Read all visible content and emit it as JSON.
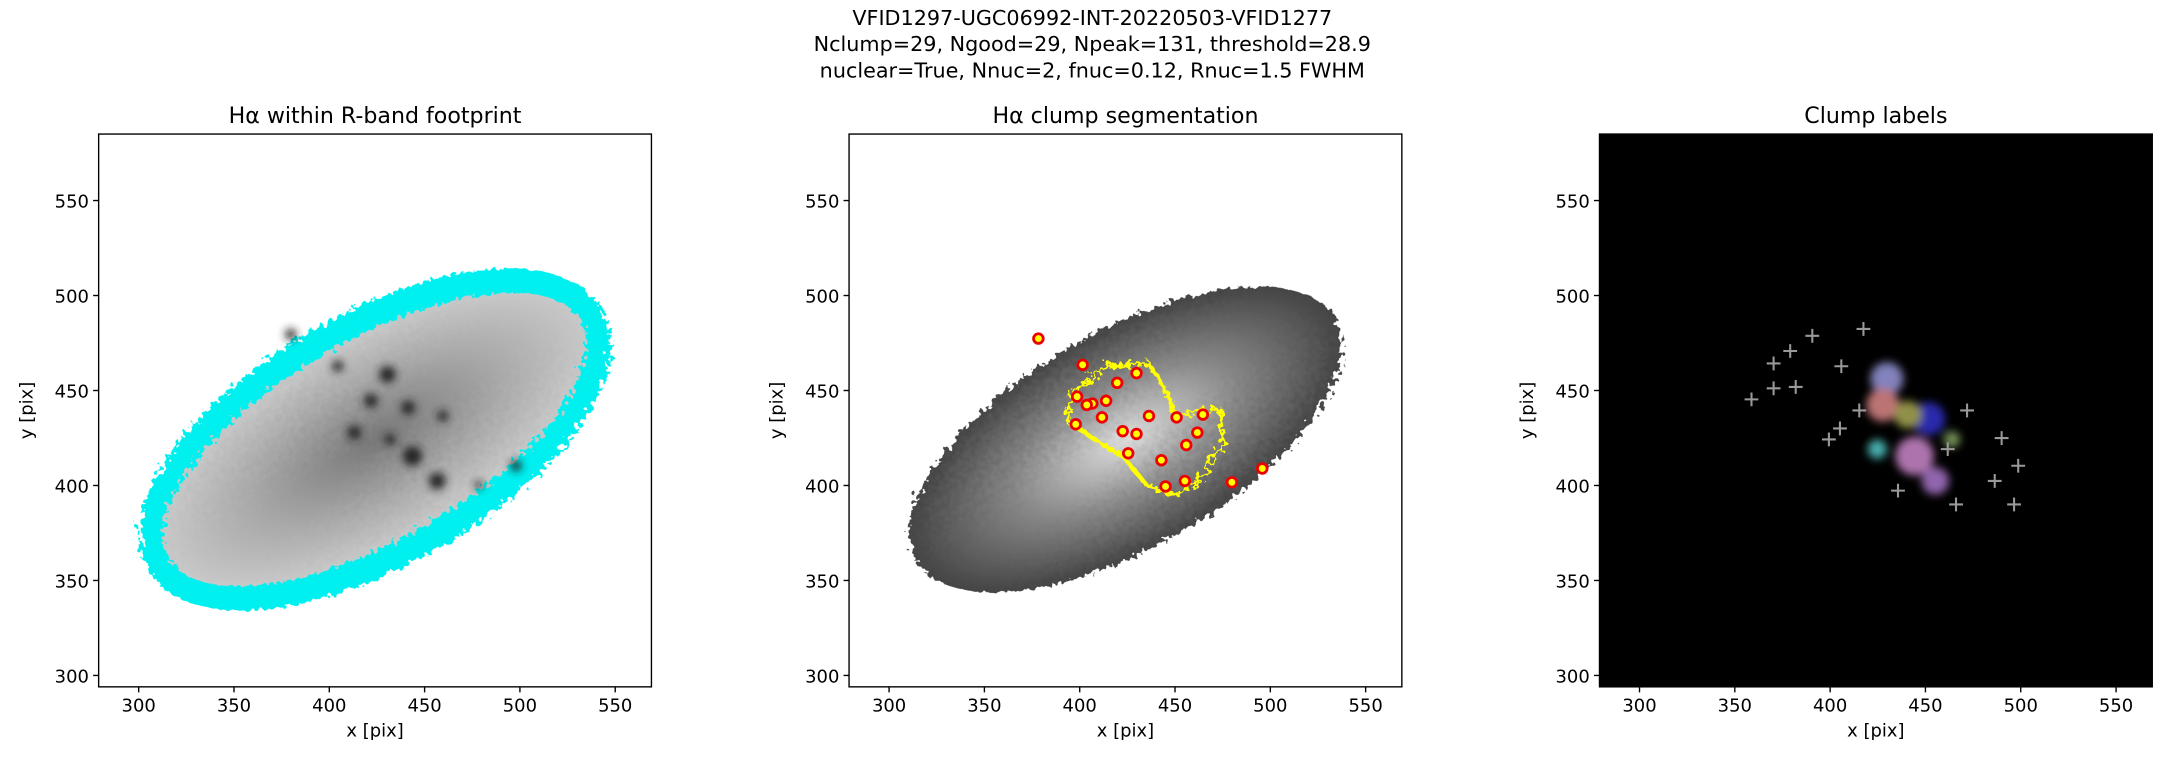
{
  "figure_title_lines": [
    "VFID1297-UGC06992-INT-20220503-VFID1277",
    "Nclump=29, Ngood=29, Npeak=131, threshold=28.9",
    "nuclear=True, Nnuc=2, fnuc=0.12, Rnuc=1.5 FWHM"
  ],
  "chart_data": [
    {
      "type": "image",
      "title": "Hα within R-band footprint",
      "xlabel": "x [pix]",
      "ylabel": "y [pix]",
      "xlim": [
        279,
        569
      ],
      "ylim": [
        294,
        585
      ],
      "xticks": [
        300,
        350,
        400,
        450,
        500,
        550
      ],
      "yticks": [
        300,
        350,
        400,
        450,
        500,
        550
      ]
    },
    {
      "type": "image",
      "title": "Hα clump segmentation",
      "xlabel": "x [pix]",
      "ylabel": "y [pix]",
      "xlim": [
        279,
        569
      ],
      "ylim": [
        294,
        585
      ],
      "xticks": [
        300,
        350,
        400,
        450,
        500,
        550
      ],
      "yticks": [
        300,
        350,
        400,
        450,
        500,
        550
      ]
    },
    {
      "type": "image",
      "title": "Clump labels",
      "xlabel": "x [pix]",
      "ylabel": "y [pix]",
      "xlim": [
        279,
        569
      ],
      "ylim": [
        294,
        585
      ],
      "xticks": [
        300,
        350,
        400,
        450,
        500,
        550
      ],
      "yticks": [
        300,
        350,
        400,
        450,
        500,
        550
      ]
    }
  ]
}
